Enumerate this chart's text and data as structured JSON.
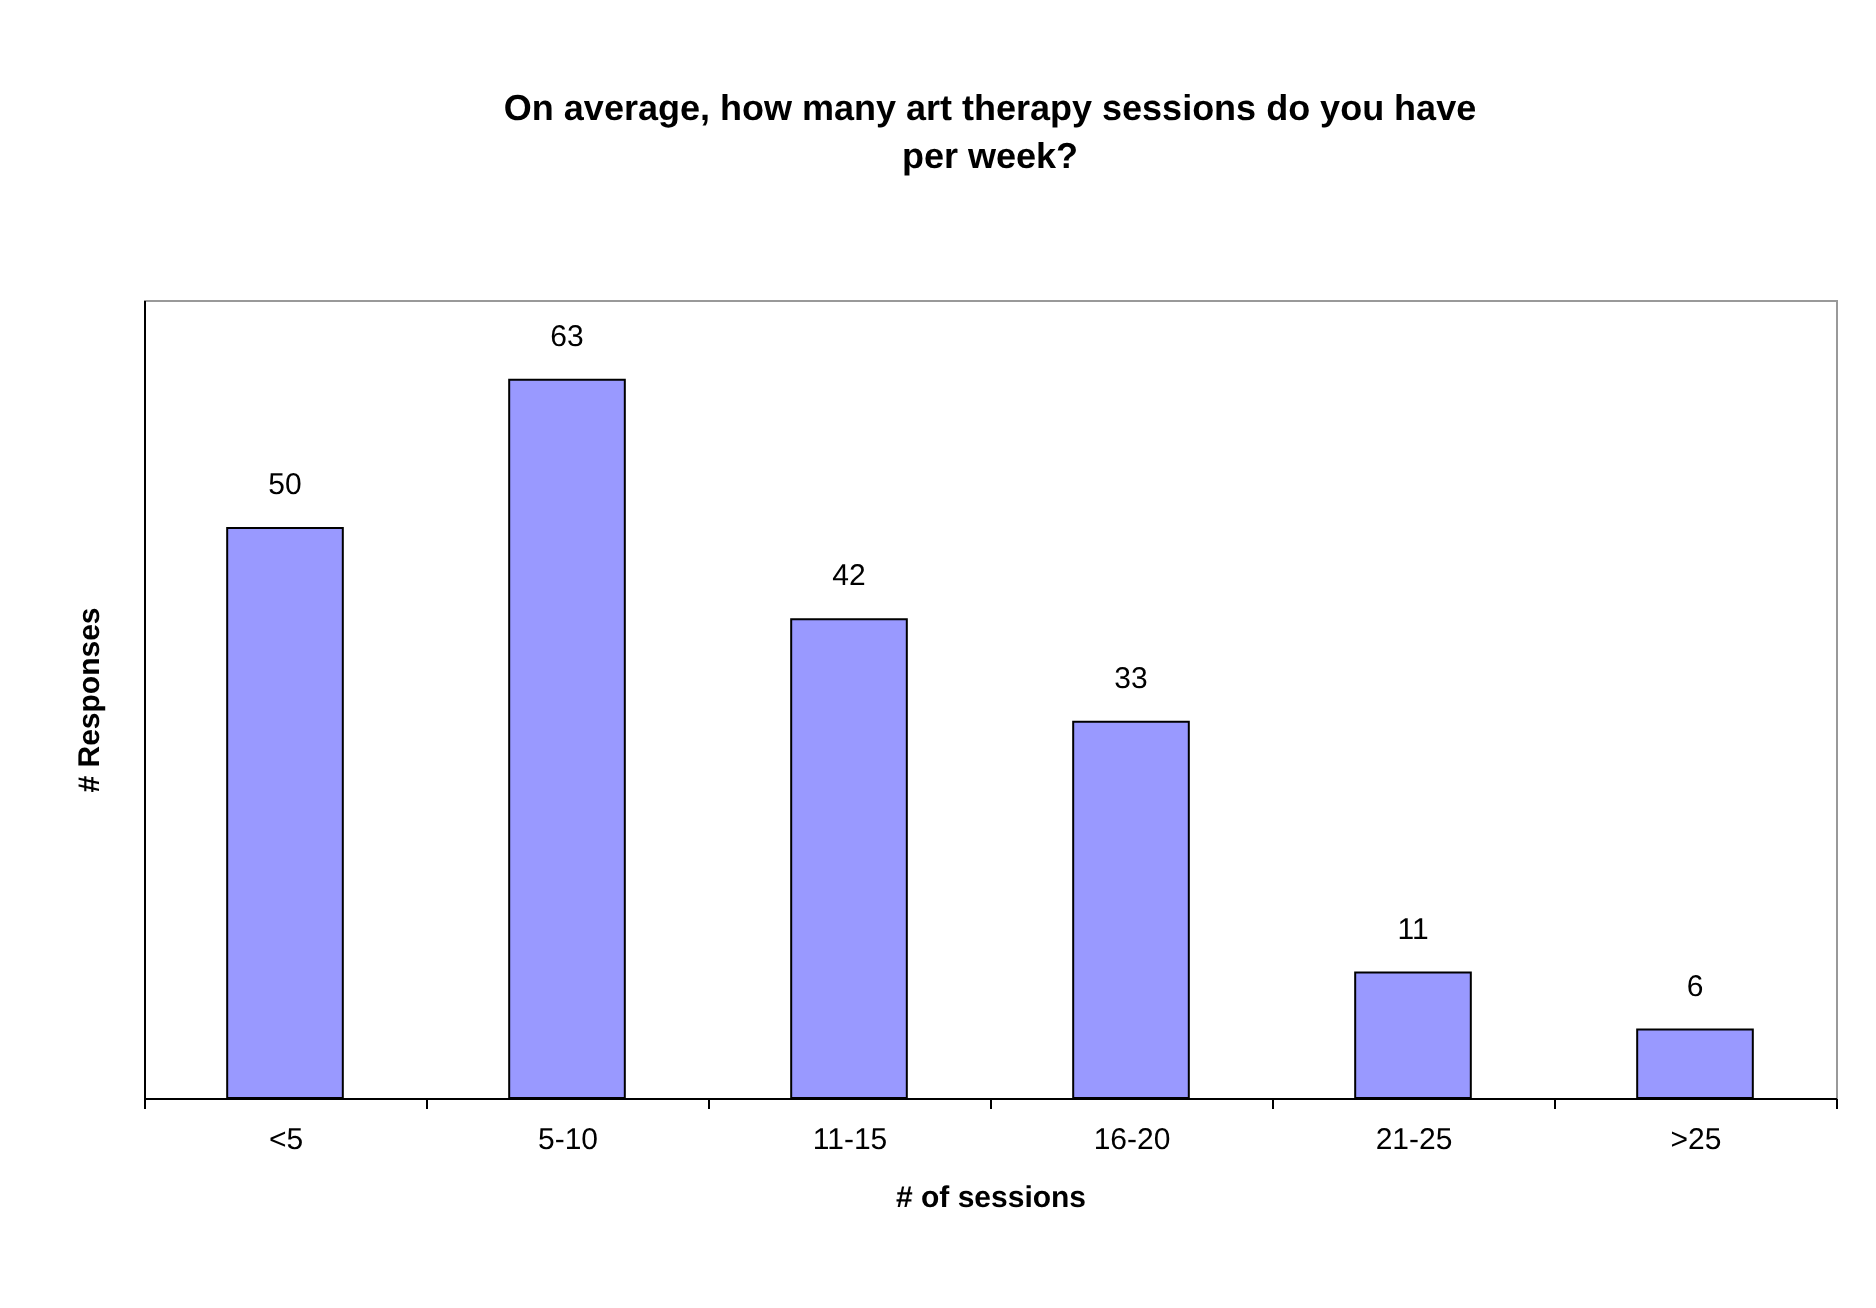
{
  "chart_data": {
    "type": "bar",
    "title": "On average, how many art therapy sessions do you have per week?",
    "xlabel": "# of sessions",
    "ylabel": "# Responses",
    "categories": [
      "<5",
      "5-10",
      "11-15",
      "16-20",
      "21-25",
      ">25"
    ],
    "values": [
      50,
      63,
      42,
      33,
      11,
      6
    ],
    "color": "#9999ff",
    "ylim": [
      0,
      70
    ],
    "tick_labels": "x",
    "data_labels": true
  }
}
